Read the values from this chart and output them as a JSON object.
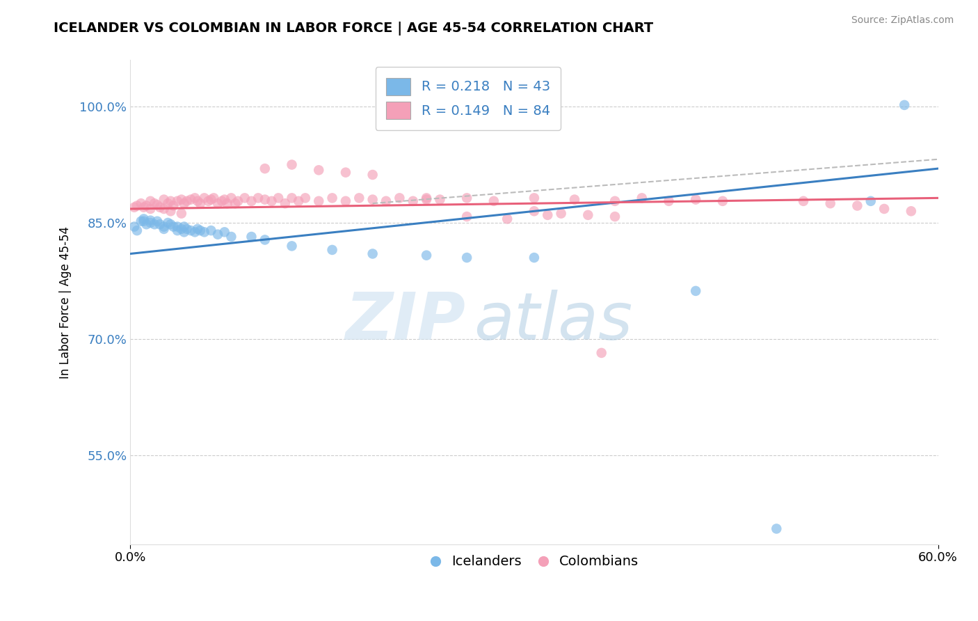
{
  "title": "ICELANDER VS COLOMBIAN IN LABOR FORCE | AGE 45-54 CORRELATION CHART",
  "source": "Source: ZipAtlas.com",
  "ylabel": "In Labor Force | Age 45-54",
  "xlim": [
    0.0,
    0.6
  ],
  "ylim": [
    0.435,
    1.06
  ],
  "xticks": [
    0.0,
    0.6
  ],
  "xtick_labels": [
    "0.0%",
    "60.0%"
  ],
  "yticks": [
    0.55,
    0.7,
    0.85,
    1.0
  ],
  "ytick_labels": [
    "55.0%",
    "70.0%",
    "85.0%",
    "100.0%"
  ],
  "legend_r1": "R = 0.218",
  "legend_n1": "N = 43",
  "legend_r2": "R = 0.149",
  "legend_n2": "N = 84",
  "blue_color": "#7bb8e8",
  "pink_color": "#f4a0b8",
  "blue_line_color": "#3a7fc1",
  "pink_line_color": "#e8607a",
  "dashed_line_color": "#bbbbbb",
  "watermark_zip": "ZIP",
  "watermark_atlas": "atlas",
  "icelanders_x": [
    0.003,
    0.005,
    0.008,
    0.01,
    0.01,
    0.012,
    0.015,
    0.015,
    0.018,
    0.02,
    0.022,
    0.025,
    0.025,
    0.028,
    0.03,
    0.032,
    0.035,
    0.035,
    0.038,
    0.04,
    0.04,
    0.042,
    0.045,
    0.048,
    0.05,
    0.052,
    0.055,
    0.06,
    0.065,
    0.07,
    0.075,
    0.09,
    0.1,
    0.12,
    0.15,
    0.18,
    0.22,
    0.25,
    0.3,
    0.42,
    0.48,
    0.55,
    0.575
  ],
  "icelanders_y": [
    0.845,
    0.84,
    0.852,
    0.855,
    0.852,
    0.848,
    0.853,
    0.85,
    0.848,
    0.852,
    0.848,
    0.845,
    0.842,
    0.85,
    0.848,
    0.845,
    0.845,
    0.84,
    0.842,
    0.845,
    0.838,
    0.842,
    0.84,
    0.838,
    0.842,
    0.84,
    0.838,
    0.84,
    0.835,
    0.838,
    0.832,
    0.832,
    0.828,
    0.82,
    0.815,
    0.81,
    0.808,
    0.805,
    0.805,
    0.762,
    0.455,
    0.878,
    1.002
  ],
  "colombians_x": [
    0.003,
    0.005,
    0.008,
    0.01,
    0.012,
    0.015,
    0.015,
    0.018,
    0.02,
    0.022,
    0.025,
    0.025,
    0.028,
    0.03,
    0.03,
    0.032,
    0.035,
    0.038,
    0.038,
    0.04,
    0.042,
    0.045,
    0.048,
    0.05,
    0.052,
    0.055,
    0.058,
    0.06,
    0.062,
    0.065,
    0.068,
    0.07,
    0.072,
    0.075,
    0.078,
    0.08,
    0.085,
    0.09,
    0.095,
    0.1,
    0.105,
    0.11,
    0.115,
    0.12,
    0.125,
    0.13,
    0.14,
    0.15,
    0.16,
    0.17,
    0.18,
    0.19,
    0.2,
    0.21,
    0.22,
    0.23,
    0.25,
    0.27,
    0.3,
    0.33,
    0.36,
    0.38,
    0.4,
    0.42,
    0.44,
    0.3,
    0.32,
    0.34,
    0.36,
    0.5,
    0.52,
    0.54,
    0.56,
    0.58,
    0.1,
    0.12,
    0.14,
    0.16,
    0.18,
    0.22,
    0.25,
    0.28,
    0.31,
    0.35
  ],
  "colombians_y": [
    0.87,
    0.872,
    0.875,
    0.87,
    0.872,
    0.878,
    0.868,
    0.875,
    0.873,
    0.87,
    0.88,
    0.868,
    0.875,
    0.878,
    0.865,
    0.872,
    0.878,
    0.88,
    0.862,
    0.875,
    0.878,
    0.88,
    0.882,
    0.878,
    0.875,
    0.882,
    0.878,
    0.88,
    0.882,
    0.875,
    0.878,
    0.88,
    0.875,
    0.882,
    0.875,
    0.878,
    0.882,
    0.878,
    0.882,
    0.88,
    0.878,
    0.882,
    0.875,
    0.882,
    0.878,
    0.882,
    0.878,
    0.882,
    0.878,
    0.882,
    0.88,
    0.878,
    0.882,
    0.878,
    0.882,
    0.88,
    0.882,
    0.878,
    0.882,
    0.88,
    0.878,
    0.882,
    0.878,
    0.88,
    0.878,
    0.865,
    0.862,
    0.86,
    0.858,
    0.878,
    0.875,
    0.872,
    0.868,
    0.865,
    0.92,
    0.925,
    0.918,
    0.915,
    0.912,
    0.88,
    0.858,
    0.855,
    0.86,
    0.682
  ],
  "blue_line": [
    0.0,
    0.6,
    0.81,
    0.92
  ],
  "pink_line": [
    0.0,
    0.6,
    0.868,
    0.882
  ],
  "dashed_line": [
    0.18,
    0.6,
    0.875,
    0.932
  ]
}
